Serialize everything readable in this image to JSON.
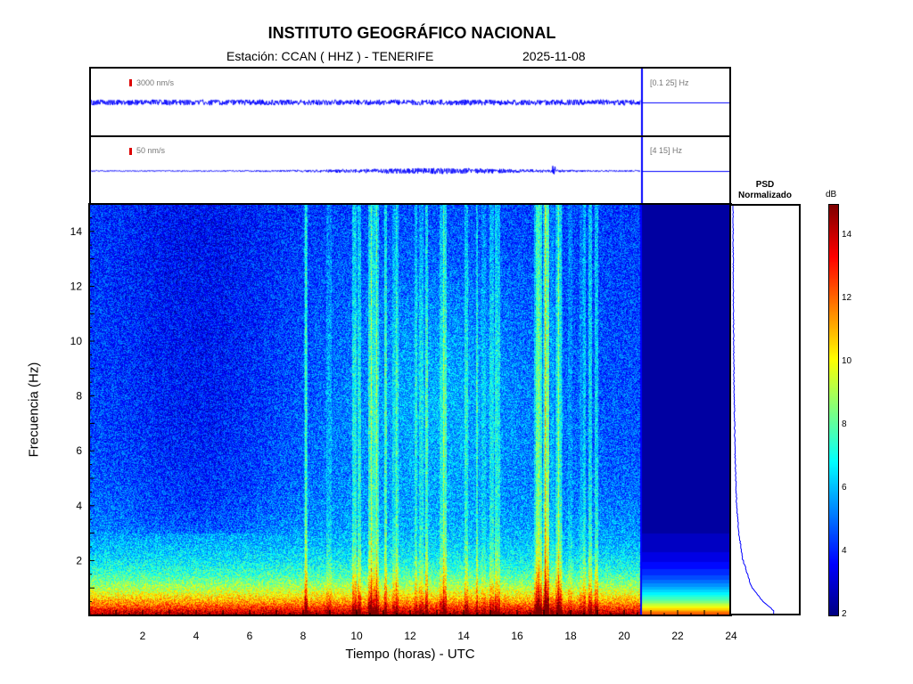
{
  "header": {
    "title": "INSTITUTO GEOGRÁFICO NACIONAL",
    "station": "Estación:  CCAN ( HHZ ) - TENERIFE",
    "date": "2025-11-08"
  },
  "traces": [
    {
      "scale_label": "3000 nm/s",
      "band_label": "[0.1 25] Hz"
    },
    {
      "scale_label": "50 nm/s",
      "band_label": "[4 15] Hz"
    }
  ],
  "psd": {
    "title_line1": "PSD",
    "title_line2": "Normalizado"
  },
  "colorbar": {
    "unit": "dB",
    "range": [
      2,
      15
    ],
    "ticks": [
      "2",
      "4",
      "6",
      "8",
      "10",
      "12",
      "14"
    ]
  },
  "colors": {
    "trace": "#0000ff",
    "scale_mark": "#dd0000"
  },
  "chart_data": {
    "type": "heatmap",
    "title": "INSTITUTO GEOGRÁFICO NACIONAL",
    "xlabel": "Tiempo (horas) - UTC",
    "ylabel": "Frecuencia  (Hz)",
    "xlim": [
      0,
      24
    ],
    "ylim": [
      0,
      15
    ],
    "x_ticks": [
      "2",
      "4",
      "6",
      "8",
      "10",
      "12",
      "14",
      "16",
      "18",
      "20",
      "22",
      "24"
    ],
    "y_ticks": [
      "2",
      "4",
      "6",
      "8",
      "10",
      "12",
      "14"
    ],
    "data_end_hour": 20.6,
    "colorscale": "jet",
    "value_range_db": [
      2,
      15
    ],
    "psd_normalized_profile": [
      {
        "freq": 0.1,
        "value": 1.0
      },
      {
        "freq": 0.5,
        "value": 0.7
      },
      {
        "freq": 1.0,
        "value": 0.45
      },
      {
        "freq": 2.0,
        "value": 0.24
      },
      {
        "freq": 3.0,
        "value": 0.14
      },
      {
        "freq": 4.0,
        "value": 0.09
      },
      {
        "freq": 6.0,
        "value": 0.05
      },
      {
        "freq": 8.0,
        "value": 0.03
      },
      {
        "freq": 10.0,
        "value": 0.02
      },
      {
        "freq": 12.0,
        "value": 0.01
      },
      {
        "freq": 15.0,
        "value": 0.0
      }
    ]
  }
}
